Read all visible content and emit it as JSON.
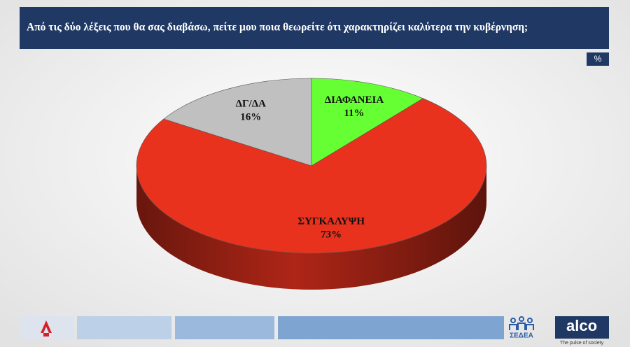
{
  "chart_data": {
    "type": "pie3d",
    "title": "Από τις δύο λέξεις που θα σας διαβάσω,  πείτε μου ποια θεωρείτε ότι χαρακτηρίζει καλύτερα την κυβέρνηση;",
    "unit_badge": "%",
    "categories": [
      "ΔΙΑΦΑΝΕΙΑ",
      "ΣΥΓΚΑΛΥΨΗ",
      "ΔΓ/ΔΑ"
    ],
    "values": [
      11,
      73,
      16
    ],
    "value_labels": [
      "11%",
      "73%",
      "16%"
    ],
    "colors": [
      "#66ff33",
      "#e8321e",
      "#c0c0c0"
    ]
  },
  "footer": {
    "logo_left": "ΣΕΔΕΑ",
    "logo_right": "alco",
    "tagline": "The pulse of society"
  }
}
